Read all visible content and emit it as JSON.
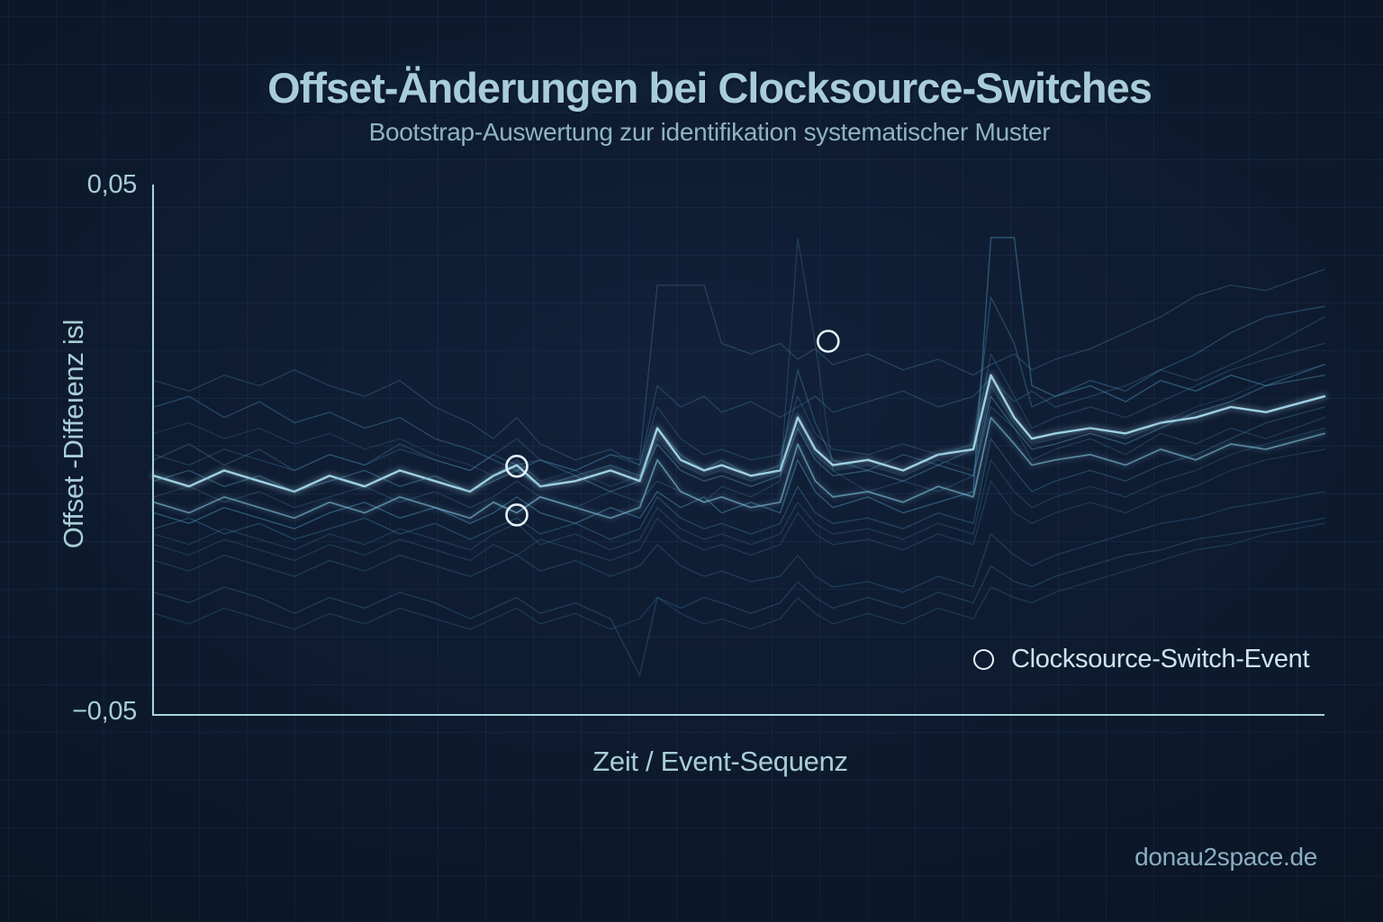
{
  "page": {
    "watermark": "donau2space.de"
  },
  "colors": {
    "background_center": "#12213a",
    "background_edge": "#091120",
    "grid": "#2a4a6a",
    "axis": "#aed2dd",
    "title": "#a8ccdb",
    "subtitle": "#8fb3c2",
    "line_base": "#4a93bd",
    "line_highlight": "#a9dcef",
    "event_marker": "#e4f2f8"
  },
  "chart_data": {
    "type": "line",
    "title": "Offset-Änderungen bei Clocksource-Switches",
    "subtitle": "Bootstrap-Auswertung zur identifikation systematischer Muster",
    "xlabel": "Zeit / Event-Sequenz",
    "ylabel": "Offset -Diffeıenz isl",
    "ytick_labels": [
      "0,05",
      "−0,05"
    ],
    "xlim": [
      0,
      100
    ],
    "ylim": [
      -0.05,
      0.05
    ],
    "grid": true,
    "legend": {
      "marker": "open-circle",
      "label": "Clocksource-Switch-Event",
      "position": "lower right"
    },
    "event_marker": {
      "shape": "circle-outline",
      "radius": 11.5,
      "stroke": "#e4f2f8",
      "stroke_width": 2.6
    },
    "events": [
      {
        "x": 31,
        "y": -0.0032,
        "name": "clocksource-switch-event-1a"
      },
      {
        "x": 31,
        "y": -0.0124,
        "name": "clocksource-switch-event-1b"
      },
      {
        "x": 57.6,
        "y": 0.0204,
        "name": "clocksource-switch-event-2"
      }
    ],
    "x": [
      0,
      3,
      6,
      9,
      12,
      15,
      18,
      21,
      24,
      27,
      29,
      31,
      33,
      36,
      39,
      41.5,
      43,
      45,
      47,
      48.5,
      51,
      53.5,
      55,
      56.5,
      58,
      61,
      64,
      67,
      70,
      71.5,
      73.5,
      75,
      77,
      80,
      83,
      86,
      89,
      92,
      95,
      100
    ],
    "series": [
      {
        "name": "bootstrap-01",
        "color": "#558fb5",
        "opacity": 0.34,
        "width": 1.2,
        "values": [
          -0.002,
          0.001,
          -0.003,
          0.0,
          -0.004,
          -0.001,
          -0.003,
          0.001,
          -0.002,
          -0.004,
          -0.001,
          -0.003,
          -0.002,
          -0.004,
          -0.001,
          -0.002,
          0.031,
          0.031,
          0.031,
          0.02,
          0.018,
          0.02,
          0.017,
          0.019,
          0.016,
          0.018,
          0.015,
          0.017,
          0.014,
          0.016,
          0.018,
          0.015,
          0.017,
          0.019,
          0.022,
          0.025,
          0.029,
          0.031,
          0.03,
          0.034
        ]
      },
      {
        "name": "bootstrap-02",
        "color": "#4d8ab2",
        "opacity": 0.3,
        "width": 1.2,
        "values": [
          -0.009,
          -0.007,
          -0.01,
          -0.008,
          -0.011,
          -0.009,
          -0.007,
          -0.01,
          -0.008,
          -0.011,
          -0.009,
          -0.006,
          -0.009,
          -0.011,
          -0.008,
          -0.01,
          -0.006,
          -0.008,
          -0.01,
          -0.007,
          -0.009,
          -0.006,
          0.0398,
          0.02,
          -0.004,
          -0.008,
          -0.006,
          -0.008,
          -0.005,
          0.008,
          0.004,
          -0.002,
          0.0,
          0.002,
          -0.001,
          0.003,
          0.001,
          0.004,
          0.002,
          0.006
        ]
      },
      {
        "name": "bootstrap-03",
        "color": "#4f9cc4",
        "opacity": 0.45,
        "width": 1.4,
        "values": [
          -0.012,
          -0.014,
          -0.011,
          -0.013,
          -0.015,
          -0.012,
          -0.01,
          -0.013,
          -0.011,
          -0.014,
          -0.012,
          -0.009,
          -0.012,
          -0.014,
          -0.011,
          -0.013,
          -0.008,
          -0.011,
          -0.009,
          -0.012,
          -0.01,
          -0.012,
          -0.002,
          -0.008,
          -0.011,
          -0.009,
          -0.012,
          -0.01,
          -0.008,
          0.04,
          0.04,
          0.012,
          0.01,
          0.012,
          0.009,
          0.013,
          0.011,
          0.014,
          0.012,
          0.016
        ]
      },
      {
        "name": "bootstrap-04",
        "color": "#4a93bd",
        "opacity": 0.38,
        "width": 1.3,
        "values": [
          0.008,
          0.01,
          0.006,
          0.009,
          0.005,
          0.007,
          0.004,
          0.006,
          0.002,
          0.0,
          -0.002,
          -0.004,
          -0.002,
          -0.005,
          -0.003,
          -0.005,
          0.004,
          -0.001,
          -0.004,
          -0.002,
          -0.005,
          -0.003,
          0.015,
          0.005,
          -0.002,
          -0.004,
          -0.001,
          -0.003,
          0.0,
          0.0287,
          0.02,
          0.008,
          0.01,
          0.013,
          0.011,
          0.015,
          0.018,
          0.022,
          0.025,
          0.027
        ]
      },
      {
        "name": "bootstrap-05",
        "color": "#4a93bd",
        "opacity": 0.32,
        "width": 1.2,
        "values": [
          0.013,
          0.011,
          0.014,
          0.012,
          0.015,
          0.012,
          0.01,
          0.013,
          0.008,
          0.005,
          0.002,
          0.006,
          0.001,
          -0.002,
          0.0,
          -0.003,
          0.012,
          0.008,
          0.01,
          0.007,
          0.009,
          0.006,
          0.008,
          0.01,
          0.007,
          0.009,
          0.011,
          0.008,
          0.01,
          0.0134,
          0.009,
          0.011,
          0.008,
          0.01,
          0.012,
          0.015,
          0.013,
          0.016,
          0.019,
          0.025
        ]
      },
      {
        "name": "bootstrap-06",
        "color": "#a9dcef",
        "opacity": 0.92,
        "width": 2.4,
        "values": [
          -0.005,
          -0.007,
          -0.004,
          -0.006,
          -0.008,
          -0.005,
          -0.007,
          -0.004,
          -0.006,
          -0.008,
          -0.005,
          -0.003,
          -0.007,
          -0.006,
          -0.004,
          -0.006,
          0.004,
          -0.002,
          -0.004,
          -0.003,
          -0.005,
          -0.004,
          0.006,
          0.0,
          -0.003,
          -0.002,
          -0.004,
          -0.001,
          0.0,
          0.014,
          0.006,
          0.002,
          0.003,
          0.004,
          0.003,
          0.005,
          0.006,
          0.008,
          0.007,
          0.01
        ]
      },
      {
        "name": "bootstrap-07",
        "color": "#7fc0da",
        "opacity": 0.62,
        "width": 1.7,
        "values": [
          -0.01,
          -0.012,
          -0.009,
          -0.011,
          -0.013,
          -0.01,
          -0.012,
          -0.009,
          -0.011,
          -0.013,
          -0.01,
          -0.012,
          -0.009,
          -0.011,
          -0.013,
          -0.011,
          -0.002,
          -0.008,
          -0.01,
          -0.009,
          -0.011,
          -0.01,
          0.001,
          -0.006,
          -0.009,
          -0.008,
          -0.01,
          -0.007,
          -0.009,
          0.006,
          0.001,
          -0.003,
          -0.002,
          -0.001,
          -0.003,
          0.0,
          -0.002,
          0.001,
          0.0,
          0.003
        ]
      },
      {
        "name": "bootstrap-08",
        "color": "#4a93bd",
        "opacity": 0.3,
        "width": 1.2,
        "values": [
          -0.001,
          -0.003,
          0.0,
          -0.002,
          -0.004,
          -0.001,
          -0.003,
          0.0,
          -0.002,
          -0.004,
          -0.001,
          0.002,
          -0.002,
          -0.004,
          -0.001,
          -0.003,
          0.008,
          0.002,
          -0.001,
          0.0,
          -0.002,
          -0.001,
          0.01,
          0.003,
          0.0,
          -0.001,
          0.001,
          -0.001,
          0.001,
          0.018,
          0.01,
          0.004,
          0.006,
          0.008,
          0.006,
          0.009,
          0.012,
          0.015,
          0.017,
          0.02
        ]
      },
      {
        "name": "bootstrap-09",
        "color": "#5aa2c6",
        "opacity": 0.4,
        "width": 1.4,
        "values": [
          -0.006,
          -0.004,
          -0.007,
          -0.005,
          -0.008,
          -0.006,
          -0.004,
          -0.007,
          -0.005,
          -0.008,
          -0.006,
          -0.004,
          -0.007,
          -0.005,
          -0.008,
          -0.006,
          0.001,
          -0.004,
          -0.006,
          -0.005,
          -0.007,
          -0.005,
          0.004,
          -0.002,
          -0.005,
          -0.004,
          -0.006,
          -0.003,
          -0.005,
          0.01,
          0.004,
          0.0,
          0.001,
          0.003,
          0.001,
          0.004,
          0.007,
          0.009,
          0.012,
          0.014
        ]
      },
      {
        "name": "bootstrap-10",
        "color": "#4a93bd",
        "opacity": 0.34,
        "width": 1.3,
        "values": [
          -0.015,
          -0.013,
          -0.016,
          -0.014,
          -0.017,
          -0.015,
          -0.013,
          -0.016,
          -0.014,
          -0.017,
          -0.015,
          -0.013,
          -0.016,
          -0.014,
          -0.017,
          -0.015,
          -0.009,
          -0.013,
          -0.015,
          -0.014,
          -0.016,
          -0.014,
          -0.007,
          -0.012,
          -0.014,
          -0.013,
          -0.015,
          -0.012,
          -0.014,
          0.002,
          -0.004,
          -0.008,
          -0.006,
          -0.004,
          -0.006,
          -0.003,
          -0.001,
          0.002,
          0.005,
          0.008
        ]
      },
      {
        "name": "bootstrap-11",
        "color": "#3f85ad",
        "opacity": 0.3,
        "width": 1.2,
        "values": [
          -0.016,
          -0.018,
          -0.015,
          -0.017,
          -0.019,
          -0.016,
          -0.018,
          -0.015,
          -0.017,
          -0.019,
          -0.016,
          -0.014,
          -0.018,
          -0.016,
          -0.019,
          -0.017,
          -0.011,
          -0.015,
          -0.017,
          -0.016,
          -0.018,
          -0.016,
          -0.01,
          -0.014,
          -0.016,
          -0.015,
          -0.017,
          -0.014,
          -0.016,
          -0.002,
          -0.008,
          -0.011,
          -0.009,
          -0.007,
          -0.009,
          -0.006,
          -0.004,
          -0.001,
          0.001,
          0.004
        ]
      },
      {
        "name": "bootstrap-12",
        "color": "#4a93bd",
        "opacity": 0.26,
        "width": 1.2,
        "values": [
          -0.018,
          -0.02,
          -0.017,
          -0.019,
          -0.021,
          -0.018,
          -0.02,
          -0.017,
          -0.019,
          -0.021,
          -0.018,
          -0.02,
          -0.017,
          -0.019,
          -0.021,
          -0.019,
          -0.013,
          -0.017,
          -0.019,
          -0.018,
          -0.02,
          -0.018,
          -0.012,
          -0.016,
          -0.018,
          -0.017,
          -0.019,
          -0.016,
          -0.018,
          -0.006,
          -0.012,
          -0.014,
          -0.012,
          -0.01,
          -0.012,
          -0.009,
          -0.007,
          -0.004,
          -0.002,
          0.0
        ]
      },
      {
        "name": "bootstrap-13",
        "color": "#3f85ad",
        "opacity": 0.3,
        "width": 1.3,
        "values": [
          -0.021,
          -0.023,
          -0.02,
          -0.022,
          -0.024,
          -0.021,
          -0.023,
          -0.02,
          -0.022,
          -0.024,
          -0.022,
          -0.02,
          -0.023,
          -0.021,
          -0.024,
          -0.022,
          -0.018,
          -0.022,
          -0.024,
          -0.023,
          -0.025,
          -0.024,
          -0.02,
          -0.024,
          -0.026,
          -0.025,
          -0.027,
          -0.024,
          -0.026,
          -0.016,
          -0.02,
          -0.022,
          -0.02,
          -0.018,
          -0.016,
          -0.014,
          -0.013,
          -0.011,
          -0.01,
          -0.008
        ]
      },
      {
        "name": "bootstrap-14",
        "color": "#4a93bd",
        "opacity": 0.28,
        "width": 1.3,
        "values": [
          -0.027,
          -0.029,
          -0.026,
          -0.028,
          -0.031,
          -0.028,
          -0.03,
          -0.027,
          -0.029,
          -0.032,
          -0.03,
          -0.028,
          -0.031,
          -0.029,
          -0.032,
          -0.0427,
          -0.028,
          -0.03,
          -0.028,
          -0.029,
          -0.031,
          -0.029,
          -0.025,
          -0.028,
          -0.03,
          -0.028,
          -0.03,
          -0.027,
          -0.029,
          -0.022,
          -0.025,
          -0.026,
          -0.024,
          -0.022,
          -0.02,
          -0.019,
          -0.017,
          -0.016,
          -0.015,
          -0.013
        ]
      },
      {
        "name": "bootstrap-15",
        "color": "#3a7ca3",
        "opacity": 0.3,
        "width": 1.3,
        "values": [
          -0.031,
          -0.033,
          -0.03,
          -0.032,
          -0.034,
          -0.031,
          -0.033,
          -0.03,
          -0.032,
          -0.034,
          -0.032,
          -0.03,
          -0.033,
          -0.031,
          -0.034,
          -0.032,
          -0.028,
          -0.031,
          -0.033,
          -0.032,
          -0.034,
          -0.032,
          -0.028,
          -0.031,
          -0.033,
          -0.031,
          -0.033,
          -0.03,
          -0.032,
          -0.026,
          -0.028,
          -0.029,
          -0.027,
          -0.025,
          -0.023,
          -0.021,
          -0.019,
          -0.018,
          -0.016,
          -0.014
        ]
      },
      {
        "name": "bootstrap-16",
        "color": "#4a93bd",
        "opacity": 0.25,
        "width": 1.1,
        "values": [
          0.003,
          0.005,
          0.002,
          0.004,
          0.001,
          0.003,
          0.0,
          0.002,
          -0.001,
          -0.003,
          -0.005,
          -0.002,
          -0.006,
          -0.004,
          -0.007,
          -0.005,
          0.002,
          -0.003,
          -0.005,
          -0.004,
          -0.006,
          -0.004,
          0.007,
          -0.001,
          -0.004,
          -0.003,
          -0.005,
          -0.002,
          -0.004,
          0.012,
          0.005,
          0.001,
          0.002,
          0.004,
          0.002,
          0.005,
          0.008,
          0.01,
          0.013,
          0.016
        ]
      }
    ]
  }
}
